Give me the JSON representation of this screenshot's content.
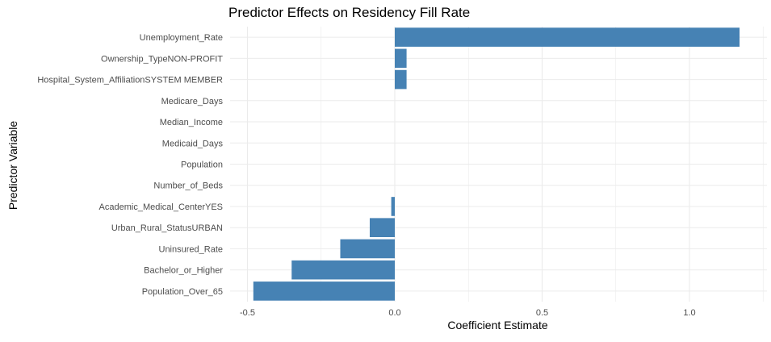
{
  "chart_data": {
    "type": "bar",
    "orientation": "horizontal",
    "title": "Predictor Effects on Residency Fill Rate",
    "xlabel": "Coefficient Estimate",
    "ylabel": "Predictor Variable",
    "categories": [
      "Unemployment_Rate",
      "Ownership_TypeNON-PROFIT",
      "Hospital_System_AffiliationSYSTEM MEMBER",
      "Medicare_Days",
      "Median_Income",
      "Medicaid_Days",
      "Population",
      "Number_of_Beds",
      "Academic_Medical_CenterYES",
      "Urban_Rural_StatusURBAN",
      "Uninsured_Rate",
      "Bachelor_or_Higher",
      "Population_Over_65"
    ],
    "values": [
      1.17,
      0.04,
      0.04,
      0.0,
      0.0,
      0.0,
      0.0,
      0.0,
      -0.012,
      -0.085,
      -0.185,
      -0.35,
      -0.48
    ],
    "x_ticks": [
      -0.5,
      0.0,
      0.5,
      1.0
    ],
    "x_tick_labels": [
      "-0.5",
      "0.0",
      "0.5",
      "1.0"
    ],
    "xlim": [
      -0.525,
      1.25
    ],
    "grid": true,
    "bar_color": "#4682b4",
    "grid_color": "#ebebeb"
  }
}
